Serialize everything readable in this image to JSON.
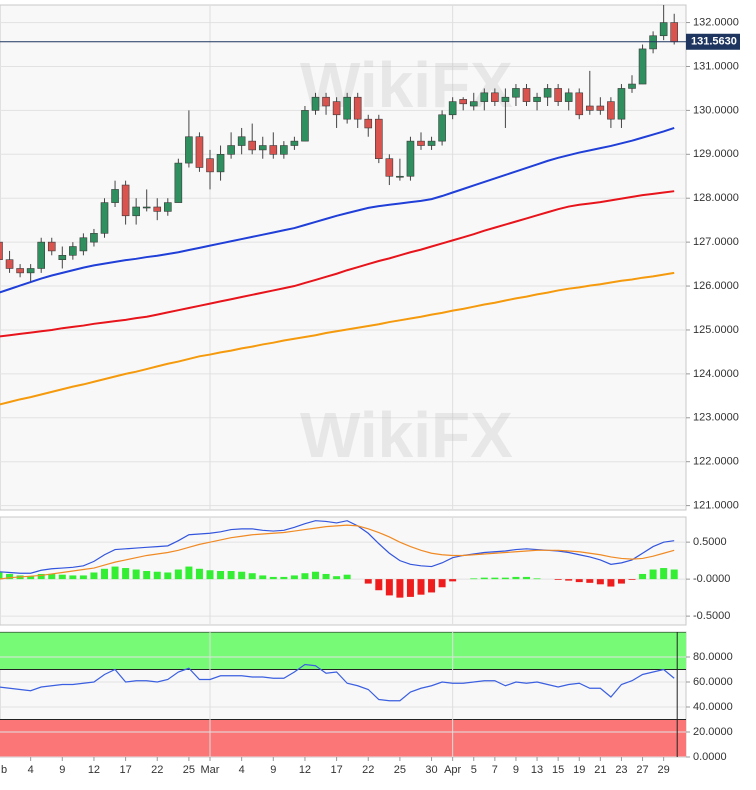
{
  "chart_data": [
    {
      "type": "candlestick",
      "categories": [
        "b",
        null,
        null,
        "4",
        null,
        null,
        "9",
        null,
        null,
        "12",
        null,
        null,
        "17",
        null,
        null,
        "22",
        null,
        null,
        "25",
        null,
        "Mar",
        null,
        null,
        "4",
        null,
        null,
        "9",
        null,
        null,
        "12",
        null,
        null,
        "17",
        null,
        null,
        "22",
        null,
        null,
        "25",
        null,
        null,
        "30",
        null,
        "Apr",
        null,
        "5",
        null,
        "7",
        null,
        "9",
        null,
        "13",
        null,
        "15",
        null,
        "19",
        null,
        "21",
        null,
        "23",
        null,
        "27",
        null,
        "29",
        null
      ],
      "open": [
        127.0,
        126.6,
        126.4,
        126.3,
        126.4,
        127.0,
        126.6,
        126.7,
        126.8,
        127.0,
        127.2,
        127.9,
        128.3,
        127.6,
        127.8,
        127.8,
        127.7,
        127.9,
        128.8,
        129.4,
        128.9,
        128.6,
        129.0,
        129.2,
        129.3,
        129.1,
        129.2,
        129.0,
        129.2,
        129.3,
        130.0,
        130.3,
        130.2,
        129.8,
        130.3,
        129.8,
        129.8,
        128.9,
        128.5,
        128.5,
        129.3,
        129.2,
        129.3,
        129.9,
        130.25,
        130.1,
        130.2,
        130.4,
        130.2,
        130.3,
        130.5,
        130.2,
        130.3,
        130.5,
        130.2,
        130.4,
        130.1,
        130.1,
        130.2,
        129.8,
        130.5,
        130.6,
        131.4,
        131.7,
        132.0
      ],
      "high": [
        127.2,
        126.8,
        126.5,
        126.5,
        127.1,
        127.1,
        126.9,
        127.0,
        127.2,
        127.3,
        128.0,
        128.4,
        128.4,
        128.0,
        128.2,
        128.0,
        128.0,
        128.9,
        130.0,
        129.5,
        129.1,
        129.2,
        129.5,
        129.6,
        129.7,
        129.4,
        129.5,
        129.3,
        129.4,
        130.1,
        130.4,
        130.4,
        130.3,
        130.4,
        130.4,
        129.9,
        129.9,
        129.0,
        128.9,
        129.4,
        129.5,
        129.4,
        130.0,
        130.3,
        130.3,
        130.4,
        130.5,
        130.5,
        130.5,
        130.6,
        130.6,
        130.4,
        130.6,
        130.6,
        130.5,
        130.5,
        130.9,
        130.3,
        130.3,
        130.6,
        130.8,
        131.5,
        131.8,
        132.4,
        132.2
      ],
      "low": [
        126.5,
        126.3,
        126.2,
        126.1,
        126.3,
        126.7,
        126.4,
        126.6,
        126.7,
        126.9,
        127.1,
        127.8,
        127.4,
        127.4,
        127.7,
        127.5,
        127.6,
        127.9,
        128.7,
        128.6,
        128.2,
        128.4,
        128.9,
        129.0,
        129.0,
        128.9,
        128.9,
        128.9,
        129.1,
        129.3,
        129.9,
        129.9,
        129.6,
        129.7,
        129.6,
        129.4,
        128.8,
        128.3,
        128.4,
        128.4,
        129.1,
        129.1,
        129.2,
        129.8,
        130.0,
        130.0,
        130.0,
        130.1,
        129.6,
        130.1,
        130.1,
        130.0,
        130.1,
        130.1,
        130.0,
        129.8,
        129.9,
        129.9,
        129.6,
        129.6,
        130.4,
        130.6,
        131.3,
        131.6,
        131.5
      ],
      "close": [
        126.6,
        126.4,
        126.3,
        126.4,
        127.0,
        126.8,
        126.7,
        126.9,
        127.1,
        127.2,
        127.9,
        128.2,
        127.6,
        127.8,
        127.8,
        127.7,
        127.9,
        128.8,
        129.4,
        128.7,
        128.6,
        129.0,
        129.2,
        129.4,
        129.1,
        129.2,
        129.0,
        129.2,
        129.3,
        130.0,
        130.3,
        130.1,
        129.9,
        130.3,
        129.8,
        129.6,
        128.9,
        128.5,
        128.5,
        129.3,
        129.2,
        129.3,
        129.9,
        130.2,
        130.15,
        130.2,
        130.4,
        130.2,
        130.3,
        130.5,
        130.2,
        130.3,
        130.5,
        130.2,
        130.4,
        129.9,
        130.0,
        130.0,
        129.8,
        130.5,
        130.6,
        131.4,
        131.7,
        132.0,
        131.563
      ],
      "up_color": "#2f8f5e",
      "down_color": "#d9534f",
      "series": [
        {
          "color": "#1f3fd8",
          "values": [
            125.85,
            125.93,
            126.01,
            126.09,
            126.17,
            126.24,
            126.3,
            126.36,
            126.42,
            126.47,
            126.51,
            126.55,
            126.59,
            126.62,
            126.66,
            126.69,
            126.73,
            126.77,
            126.82,
            126.87,
            126.92,
            126.97,
            127.02,
            127.07,
            127.12,
            127.17,
            127.22,
            127.27,
            127.32,
            127.39,
            127.46,
            127.53,
            127.6,
            127.66,
            127.72,
            127.78,
            127.82,
            127.85,
            127.88,
            127.91,
            127.94,
            127.98,
            128.05,
            128.13,
            128.21,
            128.29,
            128.37,
            128.45,
            128.53,
            128.61,
            128.69,
            128.77,
            128.85,
            128.92,
            128.98,
            129.04,
            129.09,
            129.14,
            129.19,
            129.25,
            129.31,
            129.38,
            129.45,
            129.52,
            129.6
          ]
        },
        {
          "color": "#e8141b",
          "values": [
            124.85,
            124.88,
            124.91,
            124.94,
            124.97,
            125.0,
            125.04,
            125.07,
            125.1,
            125.14,
            125.17,
            125.2,
            125.23,
            125.27,
            125.3,
            125.35,
            125.4,
            125.45,
            125.5,
            125.55,
            125.6,
            125.65,
            125.7,
            125.75,
            125.8,
            125.85,
            125.9,
            125.95,
            126.0,
            126.07,
            126.14,
            126.21,
            126.28,
            126.36,
            126.43,
            126.5,
            126.57,
            126.63,
            126.7,
            126.77,
            126.83,
            126.9,
            126.97,
            127.04,
            127.11,
            127.18,
            127.26,
            127.33,
            127.4,
            127.47,
            127.54,
            127.61,
            127.68,
            127.75,
            127.81,
            127.85,
            127.88,
            127.91,
            127.95,
            127.99,
            128.03,
            128.07,
            128.1,
            128.13,
            128.16
          ]
        },
        {
          "color": "#f59a0c",
          "values": [
            123.3,
            123.36,
            123.42,
            123.47,
            123.53,
            123.59,
            123.65,
            123.71,
            123.76,
            123.82,
            123.88,
            123.94,
            124.0,
            124.05,
            124.11,
            124.17,
            124.23,
            124.28,
            124.34,
            124.4,
            124.44,
            124.49,
            124.53,
            124.58,
            124.62,
            124.67,
            124.71,
            124.76,
            124.8,
            124.84,
            124.88,
            124.93,
            124.97,
            125.01,
            125.05,
            125.09,
            125.13,
            125.18,
            125.22,
            125.26,
            125.3,
            125.35,
            125.39,
            125.44,
            125.48,
            125.53,
            125.58,
            125.62,
            125.67,
            125.72,
            125.76,
            125.81,
            125.85,
            125.9,
            125.94,
            125.97,
            126.01,
            126.04,
            126.08,
            126.12,
            126.15,
            126.19,
            126.22,
            126.26,
            126.3
          ]
        }
      ],
      "last_price": {
        "value": 131.563,
        "label": "131.5630"
      },
      "last_price_color": "#1e3560",
      "ylim": [
        120.9,
        132.4
      ],
      "yticks": [
        {
          "value": 121,
          "label": "121.0000"
        },
        {
          "value": 122,
          "label": "122.0000"
        },
        {
          "value": 123,
          "label": "123.0000"
        },
        {
          "value": 124,
          "label": "124.0000"
        },
        {
          "value": 125,
          "label": "125.0000"
        },
        {
          "value": 126,
          "label": "126.0000"
        },
        {
          "value": 127,
          "label": "127.0000"
        },
        {
          "value": 128,
          "label": "128.0000"
        },
        {
          "value": 129,
          "label": "129.0000"
        },
        {
          "value": 130,
          "label": "130.0000"
        },
        {
          "value": 131,
          "label": "131.0000"
        },
        {
          "value": 132,
          "label": "132.0000"
        }
      ],
      "grid": true,
      "watermark": "WikiFX"
    },
    {
      "type": "macd",
      "series": [
        {
          "color": "#3355dd",
          "values": [
            0.1,
            0.09,
            0.08,
            0.08,
            0.12,
            0.14,
            0.15,
            0.16,
            0.18,
            0.24,
            0.33,
            0.4,
            0.41,
            0.42,
            0.43,
            0.44,
            0.45,
            0.52,
            0.6,
            0.61,
            0.62,
            0.64,
            0.67,
            0.68,
            0.68,
            0.66,
            0.65,
            0.66,
            0.7,
            0.75,
            0.79,
            0.78,
            0.76,
            0.79,
            0.72,
            0.62,
            0.48,
            0.35,
            0.25,
            0.2,
            0.18,
            0.17,
            0.22,
            0.29,
            0.32,
            0.34,
            0.36,
            0.37,
            0.38,
            0.4,
            0.41,
            0.4,
            0.39,
            0.38,
            0.36,
            0.33,
            0.3,
            0.26,
            0.2,
            0.22,
            0.26,
            0.35,
            0.44,
            0.5,
            0.52
          ]
        },
        {
          "color": "#f08a24",
          "values": [
            0.0,
            0.02,
            0.03,
            0.04,
            0.05,
            0.07,
            0.09,
            0.11,
            0.13,
            0.15,
            0.19,
            0.23,
            0.26,
            0.29,
            0.32,
            0.34,
            0.36,
            0.39,
            0.43,
            0.47,
            0.5,
            0.53,
            0.56,
            0.58,
            0.6,
            0.61,
            0.62,
            0.63,
            0.65,
            0.67,
            0.69,
            0.71,
            0.72,
            0.73,
            0.72,
            0.68,
            0.63,
            0.57,
            0.5,
            0.44,
            0.39,
            0.35,
            0.33,
            0.32,
            0.32,
            0.33,
            0.34,
            0.35,
            0.36,
            0.37,
            0.38,
            0.39,
            0.39,
            0.39,
            0.38,
            0.37,
            0.35,
            0.33,
            0.3,
            0.28,
            0.27,
            0.28,
            0.31,
            0.35,
            0.39
          ]
        }
      ],
      "histogram": {
        "up_color": "#33ee33",
        "down_color": "#ee1c1c",
        "values": [
          0.1,
          0.07,
          0.05,
          0.04,
          0.07,
          0.07,
          0.06,
          0.05,
          0.05,
          0.09,
          0.14,
          0.17,
          0.15,
          0.13,
          0.11,
          0.1,
          0.09,
          0.13,
          0.17,
          0.14,
          0.12,
          0.11,
          0.11,
          0.1,
          0.08,
          0.05,
          0.03,
          0.03,
          0.05,
          0.08,
          0.1,
          0.07,
          0.04,
          0.06,
          0.0,
          -0.06,
          -0.15,
          -0.22,
          -0.25,
          -0.24,
          -0.21,
          -0.18,
          -0.11,
          -0.03,
          0.0,
          0.01,
          0.02,
          0.02,
          0.02,
          0.03,
          0.03,
          0.01,
          0.0,
          -0.01,
          -0.02,
          -0.04,
          -0.05,
          -0.07,
          -0.1,
          -0.06,
          -0.01,
          0.07,
          0.13,
          0.15,
          0.13
        ]
      },
      "ylim": [
        -0.62,
        0.84
      ],
      "yticks": [
        {
          "value": 0.5,
          "label": "0.5000"
        },
        {
          "value": 0,
          "label": "-0.0000"
        },
        {
          "value": -0.5,
          "label": "-0.5000"
        }
      ],
      "grid": true
    },
    {
      "type": "line",
      "series": [
        {
          "color": "#3a5fe0",
          "values": [
            56,
            55,
            54,
            53,
            56,
            57,
            58,
            58,
            59,
            60,
            66,
            70,
            60,
            61,
            61,
            60,
            62,
            68,
            71,
            62,
            62,
            65,
            65,
            65,
            64,
            64,
            63,
            63,
            68,
            74,
            73,
            67,
            68,
            59,
            57,
            54,
            46,
            45,
            45,
            52,
            55,
            57,
            60,
            59,
            59,
            60,
            61,
            61,
            57,
            60,
            59,
            60,
            58,
            56,
            58,
            59,
            55,
            55,
            48,
            58,
            61,
            66,
            68,
            70,
            63
          ]
        }
      ],
      "zones": [
        {
          "from": 70,
          "to": 100,
          "color": "#77fb77"
        },
        {
          "from": 0,
          "to": 30,
          "color": "#fb7777"
        }
      ],
      "ylim": [
        0,
        100
      ],
      "yticks": [
        {
          "value": 80,
          "label": "80.0000"
        },
        {
          "value": 60,
          "label": "60.0000"
        },
        {
          "value": 40,
          "label": "40.0000"
        },
        {
          "value": 20,
          "label": "20.0000"
        },
        {
          "value": 0,
          "label": "0.0000"
        }
      ],
      "grid": true
    }
  ]
}
